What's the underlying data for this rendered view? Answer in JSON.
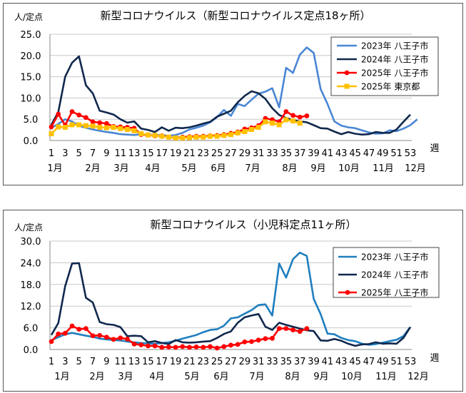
{
  "chart_data": [
    {
      "type": "line",
      "title": "新型コロナウイルス（新型コロナウイルス定点18ヶ所）",
      "ylabel": "人/定点",
      "xlabel": "週",
      "ylim": [
        0,
        25
      ],
      "yticks": [
        "0.0",
        "5.0",
        "10.0",
        "15.0",
        "20.0",
        "25.0"
      ],
      "week_ticks": [
        "1",
        "3",
        "5",
        "7",
        "9",
        "11",
        "13",
        "15",
        "17",
        "19",
        "21",
        "23",
        "25",
        "27",
        "29",
        "31",
        "33",
        "35",
        "37",
        "39",
        "41",
        "43",
        "45",
        "47",
        "49",
        "51",
        "53"
      ],
      "month_labels": [
        "1月",
        "2月",
        "3月",
        "4月",
        "5月",
        "6月",
        "7月",
        "8月",
        "9月",
        "10月",
        "11月",
        "12月"
      ],
      "legend_position": "top-right",
      "series": [
        {
          "name": "2023年 八王子市",
          "color": "#4a86d4",
          "marker": "none",
          "values": [
            3.0,
            3.9,
            5.0,
            4.5,
            3.4,
            3.0,
            2.6,
            2.3,
            2.0,
            1.8,
            1.5,
            1.4,
            1.3,
            1.5,
            1.4,
            1.3,
            1.2,
            1.1,
            1.3,
            1.8,
            2.6,
            3.0,
            3.5,
            4.3,
            5.5,
            7.2,
            5.8,
            8.6,
            8.1,
            9.6,
            11.0,
            11.5,
            12.3,
            7.8,
            17.1,
            15.9,
            20.2,
            21.9,
            20.6,
            12.1,
            8.6,
            4.5,
            3.5,
            3.1,
            2.9,
            2.4,
            1.9,
            1.6,
            1.7,
            2.4,
            2.2,
            2.8,
            3.6,
            5.0
          ]
        },
        {
          "name": "2024年 八王子市",
          "color": "#10284d",
          "marker": "none",
          "values": [
            3.7,
            6.7,
            15.0,
            18.3,
            19.8,
            13.0,
            11.1,
            7.0,
            6.6,
            6.1,
            5.0,
            4.2,
            4.5,
            2.8,
            2.5,
            2.0,
            3.1,
            2.3,
            3.0,
            2.9,
            3.1,
            3.5,
            4.0,
            4.4,
            5.6,
            6.3,
            7.0,
            9.0,
            10.5,
            11.6,
            11.1,
            9.8,
            7.6,
            6.0,
            5.3,
            4.8,
            4.5,
            4.3,
            3.6,
            2.9,
            2.8,
            2.1,
            1.5,
            2.0,
            1.6,
            1.4,
            1.5,
            2.0,
            1.8,
            1.8,
            2.6,
            4.4,
            6.1
          ]
        },
        {
          "name": "2025年 八王子市",
          "color": "#ff0000",
          "marker": "circle",
          "values": [
            3.2,
            6.2,
            3.6,
            6.8,
            6.0,
            5.4,
            4.4,
            4.2,
            4.0,
            3.3,
            3.2,
            3.1,
            2.9,
            1.4,
            1.3,
            1.1,
            1.1,
            0.8,
            0.6,
            0.8,
            0.9,
            1.0,
            1.0,
            1.1,
            1.2,
            1.4,
            1.7,
            2.0,
            2.7,
            3.0,
            3.5,
            5.2,
            4.9,
            4.4,
            6.8,
            5.9,
            5.5,
            5.8
          ]
        },
        {
          "name": "2025年 東京都",
          "color": "#ffc000",
          "marker": "square",
          "values": [
            1.6,
            3.2,
            3.1,
            3.7,
            3.7,
            3.5,
            3.4,
            3.1,
            3.0,
            3.1,
            2.8,
            2.6,
            2.3,
            1.6,
            1.3,
            1.2,
            1.0,
            0.8,
            0.6,
            0.6,
            0.7,
            0.8,
            0.8,
            1.0,
            1.0,
            1.2,
            1.4,
            1.8,
            2.1,
            2.6,
            3.1,
            4.4,
            4.1,
            3.7,
            4.9,
            4.6,
            4.1
          ]
        }
      ]
    },
    {
      "type": "line",
      "title": "新型コロナウイルス（小児科定点11ヶ所）",
      "ylabel": "人/定点",
      "xlabel": "週",
      "ylim": [
        0,
        30
      ],
      "yticks": [
        "0.0",
        "6.0",
        "12.0",
        "18.0",
        "24.0",
        "30.0"
      ],
      "week_ticks": [
        "1",
        "3",
        "5",
        "7",
        "9",
        "11",
        "13",
        "15",
        "17",
        "19",
        "21",
        "23",
        "25",
        "27",
        "29",
        "31",
        "33",
        "35",
        "37",
        "39",
        "41",
        "43",
        "45",
        "47",
        "49",
        "51",
        "53"
      ],
      "month_labels": [
        "1月",
        "2月",
        "3月",
        "4月",
        "5月",
        "6月",
        "7月",
        "8月",
        "9月",
        "10月",
        "11月",
        "12月"
      ],
      "legend_position": "top-right",
      "series": [
        {
          "name": "2023年 八王子市",
          "color": "#1f7fbf",
          "marker": "none",
          "values": [
            2.6,
            3.4,
            4.2,
            4.6,
            4.2,
            3.8,
            3.5,
            3.0,
            2.8,
            2.6,
            2.5,
            2.2,
            2.0,
            1.8,
            1.7,
            1.6,
            1.8,
            2.0,
            2.4,
            3.0,
            3.5,
            4.0,
            4.8,
            5.4,
            5.6,
            6.6,
            8.6,
            8.9,
            9.9,
            10.9,
            12.3,
            12.5,
            9.4,
            23.8,
            19.9,
            25.0,
            26.8,
            25.9,
            14.0,
            9.8,
            4.4,
            4.2,
            3.2,
            2.6,
            2.3,
            1.6,
            1.3,
            1.5,
            1.9,
            2.3,
            2.7,
            3.7,
            6.2
          ]
        },
        {
          "name": "2024年 八王子市",
          "color": "#10284d",
          "marker": "none",
          "values": [
            4.0,
            7.3,
            17.5,
            23.8,
            23.9,
            14.3,
            13.0,
            7.6,
            7.0,
            6.8,
            6.2,
            3.7,
            3.8,
            3.7,
            2.0,
            2.3,
            1.8,
            1.5,
            2.6,
            2.0,
            1.9,
            2.0,
            2.2,
            2.3,
            3.2,
            4.3,
            5.0,
            7.4,
            8.9,
            9.4,
            9.8,
            6.3,
            5.4,
            7.4,
            6.8,
            6.3,
            5.8,
            5.3,
            5.1,
            2.5,
            2.4,
            2.9,
            2.4,
            1.6,
            1.0,
            1.4,
            1.5,
            2.0,
            1.6,
            1.7,
            1.6,
            3.2,
            6.2
          ]
        },
        {
          "name": "2025年 八王子市",
          "color": "#ff0000",
          "marker": "circle",
          "values": [
            2.2,
            4.3,
            4.5,
            6.5,
            5.6,
            5.8,
            3.8,
            3.9,
            3.4,
            2.8,
            3.2,
            2.9,
            1.5,
            1.3,
            1.0,
            1.0,
            0.6,
            0.7,
            0.6,
            0.8,
            0.6,
            0.7,
            0.6,
            0.8,
            0.4,
            0.8,
            1.2,
            1.4,
            2.1,
            2.2,
            2.6,
            3.0,
            3.1,
            5.8,
            5.8,
            5.4,
            5.0,
            5.8
          ]
        }
      ]
    }
  ]
}
